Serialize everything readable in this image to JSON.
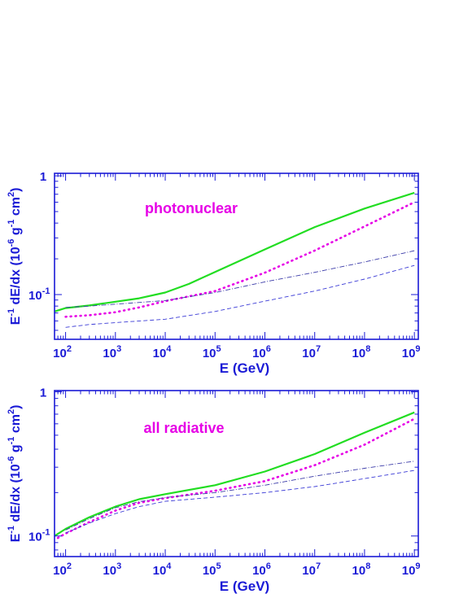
{
  "colors": {
    "axis": "#1a1ad6",
    "annotation": "#e600e6",
    "solid_series": "#22dd22",
    "dotted_series": "#e600e6",
    "dashdot_series": "#3a3aa8",
    "dashed_series": "#3a3ad6"
  },
  "chart_data": [
    {
      "type": "line",
      "annotation": "photonuclear",
      "xlabel": "E (GeV)",
      "ylabel_parts": [
        "E",
        "-1",
        " dE/dx (10",
        "-6",
        " g",
        "-1",
        " cm",
        "2",
        ")"
      ],
      "xscale": "log",
      "yscale": "log",
      "xlim": [
        60,
        1200000000
      ],
      "ylim": [
        0.042,
        1.05
      ],
      "x_tick_labels": [
        "10",
        "10",
        "10",
        "10",
        "10",
        "10",
        "10",
        "10"
      ],
      "x_tick_exponents": [
        "2",
        "3",
        "4",
        "5",
        "6",
        "7",
        "8",
        "9"
      ],
      "y_tick_labels": [
        {
          "base": "10",
          "exp": "-1"
        },
        {
          "base": "1",
          "exp": ""
        }
      ],
      "series": [
        {
          "style": "solid",
          "x": [
            60,
            100,
            300,
            1000,
            3000,
            10000,
            30000,
            100000,
            1000000,
            10000000,
            100000000,
            1000000000
          ],
          "y": [
            0.072,
            0.077,
            0.081,
            0.087,
            0.093,
            0.104,
            0.123,
            0.155,
            0.24,
            0.37,
            0.53,
            0.72
          ]
        },
        {
          "style": "dotted",
          "x": [
            100,
            300,
            1000,
            3000,
            10000,
            100000,
            1000000,
            10000000,
            100000000,
            1000000000
          ],
          "y": [
            0.065,
            0.067,
            0.071,
            0.078,
            0.088,
            0.107,
            0.153,
            0.235,
            0.375,
            0.6
          ]
        },
        {
          "style": "dashdot",
          "x": [
            100,
            300,
            1000,
            10000,
            100000,
            1000000,
            10000000,
            100000000,
            1000000000
          ],
          "y": [
            0.078,
            0.08,
            0.083,
            0.089,
            0.104,
            0.128,
            0.154,
            0.188,
            0.234
          ]
        },
        {
          "style": "dashed",
          "x": [
            100,
            300,
            1000,
            10000,
            100000,
            1000000,
            10000000,
            100000000,
            1000000000
          ],
          "y": [
            0.053,
            0.056,
            0.058,
            0.062,
            0.072,
            0.088,
            0.107,
            0.135,
            0.176
          ]
        }
      ]
    },
    {
      "type": "line",
      "annotation": "all radiative",
      "xlabel": "E (GeV)",
      "ylabel_parts": [
        "E",
        "-1",
        " dE/dx (10",
        "-6",
        " g",
        "-1",
        " cm",
        "2",
        ")"
      ],
      "xscale": "log",
      "yscale": "log",
      "xlim": [
        60,
        1200000000
      ],
      "ylim": [
        0.072,
        1.02
      ],
      "x_tick_labels": [
        "10",
        "10",
        "10",
        "10",
        "10",
        "10",
        "10",
        "10"
      ],
      "x_tick_exponents": [
        "2",
        "3",
        "4",
        "5",
        "6",
        "7",
        "8",
        "9"
      ],
      "y_tick_labels": [
        {
          "base": "10",
          "exp": "-1"
        },
        {
          "base": "1",
          "exp": ""
        }
      ],
      "series": [
        {
          "style": "solid",
          "x": [
            60,
            100,
            300,
            1000,
            3000,
            10000,
            100000,
            1000000,
            10000000,
            100000000,
            1000000000
          ],
          "y": [
            0.1,
            0.112,
            0.135,
            0.16,
            0.18,
            0.195,
            0.225,
            0.28,
            0.37,
            0.52,
            0.72
          ]
        },
        {
          "style": "dotted",
          "x": [
            70,
            100,
            300,
            1000,
            3000,
            10000,
            100000,
            1000000,
            10000000,
            100000000,
            1000000000
          ],
          "y": [
            0.097,
            0.104,
            0.125,
            0.15,
            0.17,
            0.183,
            0.206,
            0.24,
            0.31,
            0.43,
            0.65
          ]
        },
        {
          "style": "dashdot",
          "x": [
            100,
            300,
            1000,
            3000,
            10000,
            100000,
            1000000,
            10000000,
            100000000,
            1000000000
          ],
          "y": [
            0.11,
            0.132,
            0.157,
            0.173,
            0.185,
            0.2,
            0.225,
            0.26,
            0.295,
            0.33
          ]
        },
        {
          "style": "dashed",
          "x": [
            100,
            300,
            1000,
            3000,
            10000,
            100000,
            1000000,
            10000000,
            100000000,
            1000000000
          ],
          "y": [
            0.105,
            0.123,
            0.143,
            0.16,
            0.174,
            0.186,
            0.2,
            0.22,
            0.25,
            0.285
          ]
        }
      ]
    }
  ]
}
